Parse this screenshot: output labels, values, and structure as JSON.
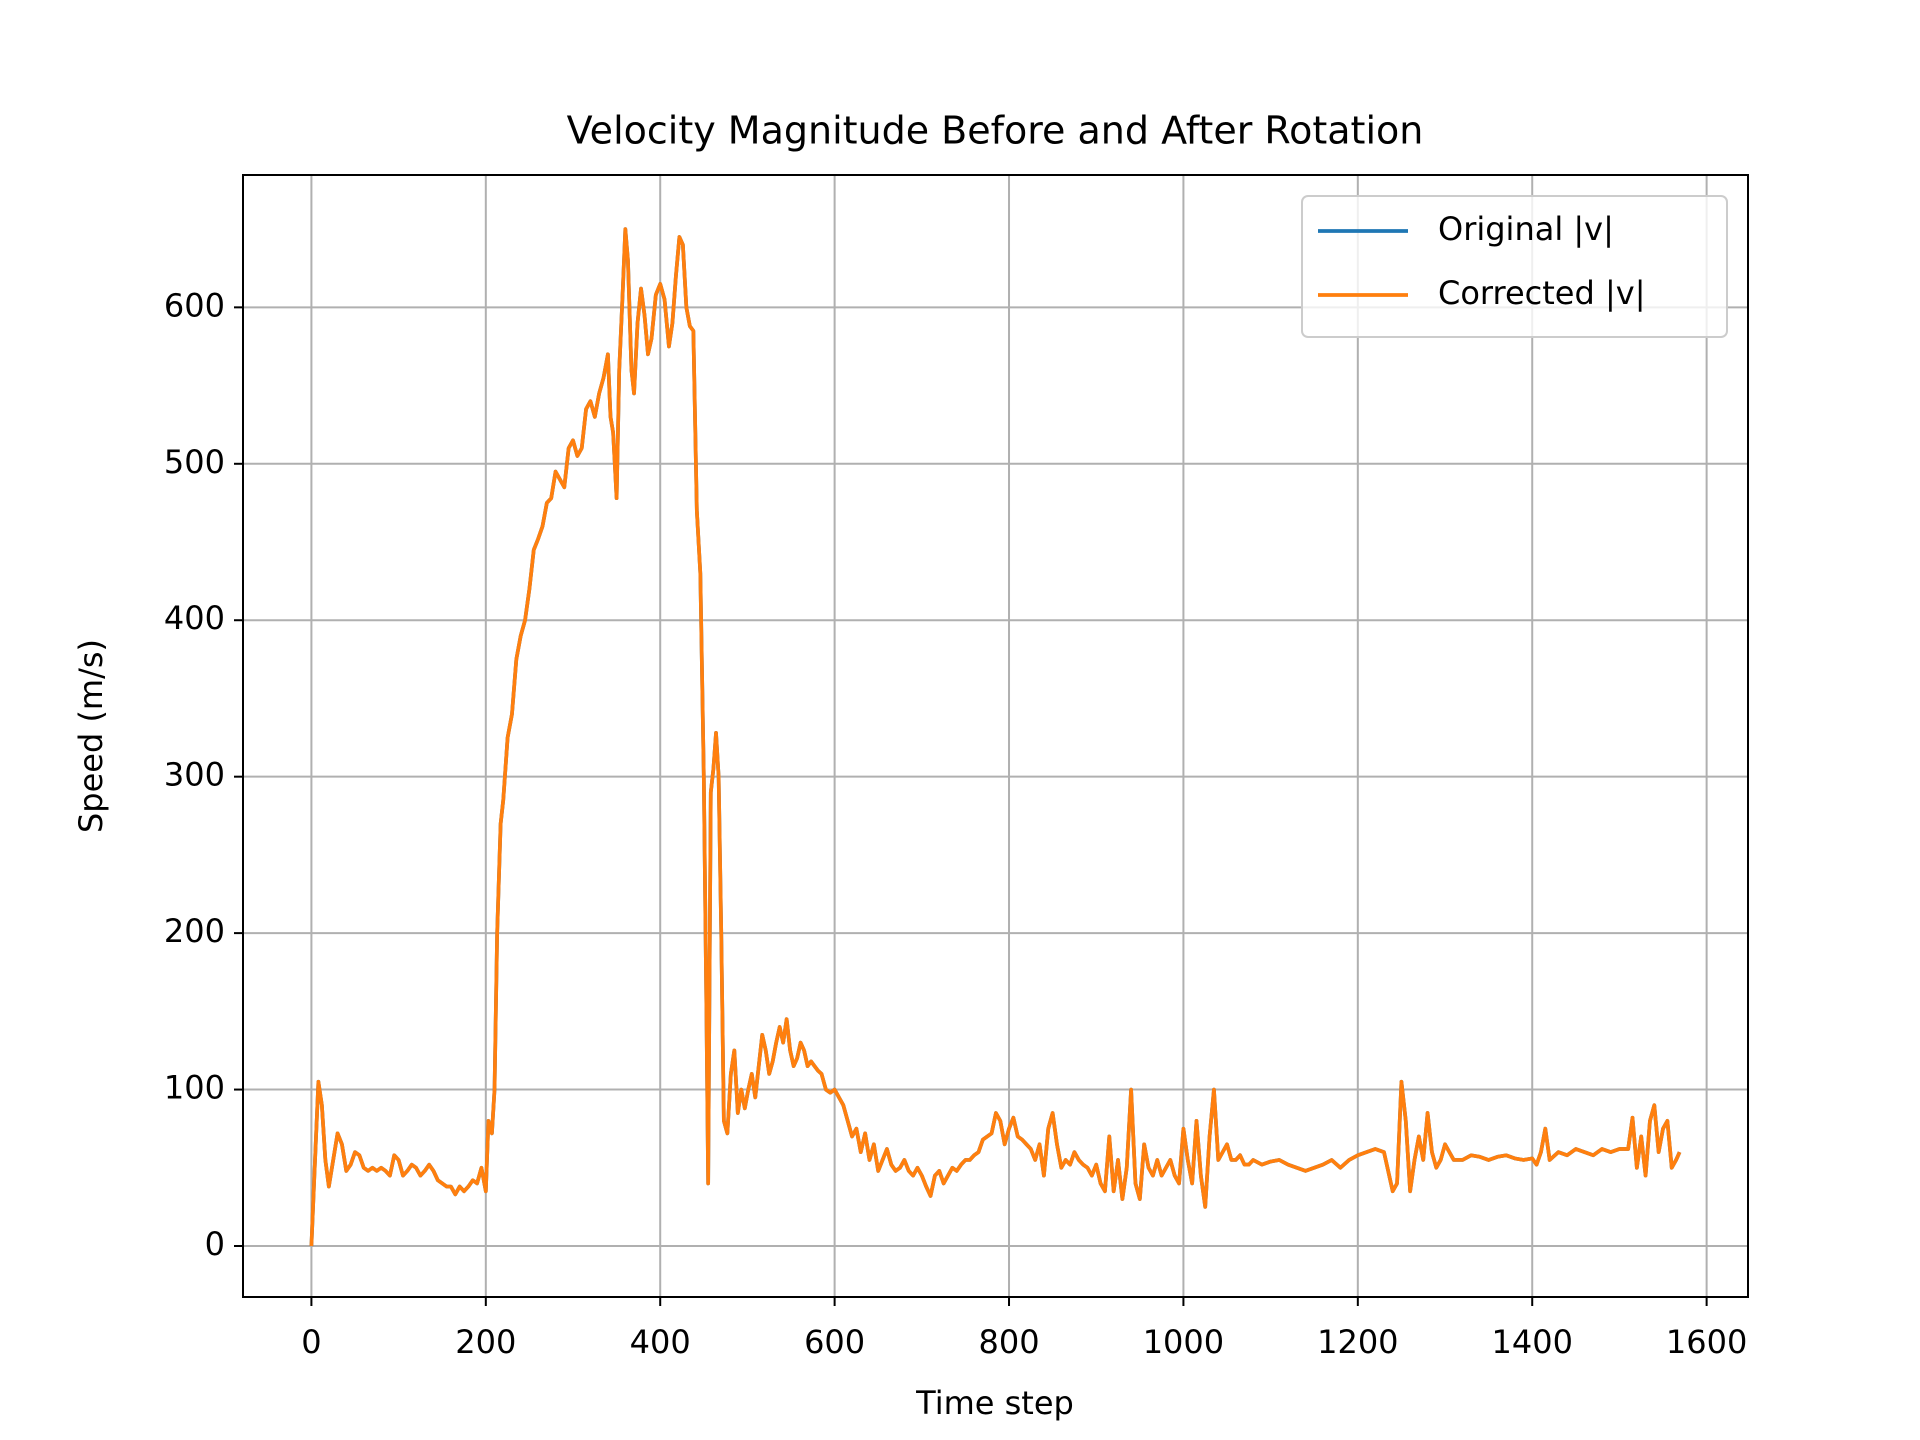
{
  "chart_data": {
    "type": "line",
    "title": "Velocity Magnitude Before and After Rotation",
    "x_label": "Time step",
    "y_label": "Speed (m/s)",
    "x": [
      0,
      3,
      8,
      12,
      16,
      20,
      25,
      30,
      35,
      40,
      45,
      50,
      55,
      60,
      65,
      70,
      75,
      80,
      85,
      90,
      95,
      100,
      105,
      110,
      115,
      120,
      125,
      130,
      135,
      140,
      145,
      150,
      155,
      160,
      165,
      170,
      175,
      180,
      185,
      190,
      195,
      200,
      203,
      207,
      210,
      213,
      217,
      220,
      225,
      230,
      235,
      240,
      245,
      250,
      255,
      260,
      265,
      270,
      275,
      280,
      285,
      290,
      295,
      300,
      305,
      310,
      315,
      320,
      325,
      330,
      335,
      340,
      343,
      346,
      350,
      353,
      357,
      360,
      363,
      367,
      370,
      374,
      378,
      382,
      386,
      390,
      395,
      400,
      405,
      410,
      414,
      418,
      422,
      426,
      430,
      434,
      438,
      442,
      446,
      450,
      453,
      455,
      458,
      461,
      464,
      467,
      470,
      473,
      477,
      481,
      485,
      489,
      493,
      497,
      501,
      505,
      509,
      513,
      517,
      521,
      525,
      529,
      533,
      537,
      541,
      545,
      549,
      553,
      557,
      561,
      565,
      569,
      573,
      577,
      581,
      585,
      590,
      595,
      600,
      605,
      610,
      615,
      620,
      625,
      630,
      635,
      640,
      645,
      650,
      655,
      660,
      665,
      670,
      675,
      680,
      685,
      690,
      695,
      700,
      705,
      710,
      715,
      720,
      725,
      730,
      735,
      740,
      745,
      750,
      755,
      760,
      765,
      770,
      775,
      780,
      785,
      790,
      795,
      800,
      805,
      810,
      815,
      820,
      825,
      830,
      835,
      840,
      845,
      850,
      855,
      860,
      865,
      870,
      875,
      880,
      885,
      890,
      895,
      900,
      905,
      910,
      915,
      920,
      925,
      930,
      935,
      940,
      945,
      950,
      955,
      960,
      965,
      970,
      975,
      980,
      985,
      990,
      995,
      1000,
      1005,
      1010,
      1015,
      1020,
      1025,
      1030,
      1035,
      1040,
      1045,
      1050,
      1055,
      1060,
      1065,
      1070,
      1075,
      1080,
      1090,
      1100,
      1110,
      1120,
      1130,
      1140,
      1150,
      1160,
      1170,
      1180,
      1190,
      1200,
      1210,
      1220,
      1230,
      1240,
      1245,
      1250,
      1255,
      1260,
      1265,
      1270,
      1275,
      1280,
      1285,
      1290,
      1295,
      1300,
      1305,
      1310,
      1320,
      1330,
      1340,
      1350,
      1360,
      1370,
      1380,
      1390,
      1400,
      1405,
      1410,
      1415,
      1420,
      1430,
      1440,
      1450,
      1460,
      1470,
      1480,
      1490,
      1500,
      1510,
      1515,
      1520,
      1525,
      1530,
      1535,
      1540,
      1545,
      1550,
      1555,
      1560,
      1565,
      1569
    ],
    "series": [
      {
        "name": "Original |v|",
        "color": "#1f77b4",
        "values": [
          0,
          40,
          105,
          90,
          55,
          38,
          55,
          72,
          65,
          48,
          52,
          60,
          58,
          50,
          48,
          50,
          48,
          50,
          48,
          45,
          58,
          55,
          45,
          48,
          52,
          50,
          45,
          48,
          52,
          48,
          42,
          40,
          38,
          38,
          33,
          38,
          35,
          38,
          42,
          40,
          50,
          35,
          80,
          72,
          100,
          200,
          270,
          285,
          325,
          340,
          375,
          390,
          400,
          420,
          445,
          452,
          460,
          475,
          478,
          495,
          490,
          485,
          510,
          515,
          505,
          510,
          535,
          540,
          530,
          545,
          555,
          570,
          530,
          520,
          478,
          560,
          610,
          650,
          630,
          560,
          545,
          590,
          612,
          595,
          570,
          580,
          608,
          615,
          605,
          575,
          590,
          620,
          645,
          640,
          600,
          588,
          585,
          470,
          430,
          300,
          150,
          40,
          290,
          305,
          328,
          300,
          200,
          80,
          72,
          110,
          125,
          85,
          100,
          88,
          100,
          110,
          95,
          115,
          135,
          125,
          110,
          118,
          130,
          140,
          130,
          145,
          125,
          115,
          120,
          130,
          125,
          115,
          118,
          115,
          112,
          110,
          100,
          98,
          100,
          95,
          90,
          80,
          70,
          75,
          60,
          72,
          55,
          65,
          48,
          55,
          62,
          52,
          48,
          50,
          55,
          48,
          45,
          50,
          45,
          38,
          32,
          45,
          48,
          40,
          45,
          50,
          48,
          52,
          55,
          55,
          58,
          60,
          68,
          70,
          72,
          85,
          80,
          65,
          75,
          82,
          70,
          68,
          65,
          62,
          55,
          65,
          45,
          75,
          85,
          65,
          50,
          55,
          52,
          60,
          55,
          52,
          50,
          45,
          52,
          40,
          35,
          70,
          35,
          55,
          30,
          50,
          100,
          40,
          30,
          65,
          50,
          45,
          55,
          45,
          50,
          55,
          45,
          40,
          75,
          55,
          40,
          80,
          45,
          25,
          70,
          100,
          55,
          60,
          65,
          55,
          55,
          58,
          52,
          52,
          55,
          52,
          54,
          55,
          52,
          50,
          48,
          50,
          52,
          55,
          50,
          55,
          58,
          60,
          62,
          60,
          35,
          40,
          105,
          80,
          35,
          55,
          70,
          55,
          85,
          60,
          50,
          55,
          65,
          60,
          55,
          55,
          58,
          57,
          55,
          57,
          58,
          56,
          55,
          56,
          52,
          60,
          75,
          55,
          60,
          58,
          62,
          60,
          58,
          62,
          60,
          62,
          62,
          82,
          50,
          70,
          45,
          80,
          90,
          60,
          75,
          80,
          50,
          55,
          60
        ]
      },
      {
        "name": "Corrected |v|",
        "color": "#ff7f0e",
        "values": [
          0,
          40,
          105,
          90,
          55,
          38,
          55,
          72,
          65,
          48,
          52,
          60,
          58,
          50,
          48,
          50,
          48,
          50,
          48,
          45,
          58,
          55,
          45,
          48,
          52,
          50,
          45,
          48,
          52,
          48,
          42,
          40,
          38,
          38,
          33,
          38,
          35,
          38,
          42,
          40,
          50,
          35,
          80,
          72,
          100,
          200,
          270,
          285,
          325,
          340,
          375,
          390,
          400,
          420,
          445,
          452,
          460,
          475,
          478,
          495,
          490,
          485,
          510,
          515,
          505,
          510,
          535,
          540,
          530,
          545,
          555,
          570,
          530,
          520,
          478,
          560,
          610,
          650,
          630,
          560,
          545,
          590,
          612,
          595,
          570,
          580,
          608,
          615,
          605,
          575,
          590,
          620,
          645,
          640,
          600,
          588,
          585,
          470,
          430,
          300,
          150,
          40,
          290,
          305,
          328,
          300,
          200,
          80,
          72,
          110,
          125,
          85,
          100,
          88,
          100,
          110,
          95,
          115,
          135,
          125,
          110,
          118,
          130,
          140,
          130,
          145,
          125,
          115,
          120,
          130,
          125,
          115,
          118,
          115,
          112,
          110,
          100,
          98,
          100,
          95,
          90,
          80,
          70,
          75,
          60,
          72,
          55,
          65,
          48,
          55,
          62,
          52,
          48,
          50,
          55,
          48,
          45,
          50,
          45,
          38,
          32,
          45,
          48,
          40,
          45,
          50,
          48,
          52,
          55,
          55,
          58,
          60,
          68,
          70,
          72,
          85,
          80,
          65,
          75,
          82,
          70,
          68,
          65,
          62,
          55,
          65,
          45,
          75,
          85,
          65,
          50,
          55,
          52,
          60,
          55,
          52,
          50,
          45,
          52,
          40,
          35,
          70,
          35,
          55,
          30,
          50,
          100,
          40,
          30,
          65,
          50,
          45,
          55,
          45,
          50,
          55,
          45,
          40,
          75,
          55,
          40,
          80,
          45,
          25,
          70,
          100,
          55,
          60,
          65,
          55,
          55,
          58,
          52,
          52,
          55,
          52,
          54,
          55,
          52,
          50,
          48,
          50,
          52,
          55,
          50,
          55,
          58,
          60,
          62,
          60,
          35,
          40,
          105,
          80,
          35,
          55,
          70,
          55,
          85,
          60,
          50,
          55,
          65,
          60,
          55,
          55,
          58,
          57,
          55,
          57,
          58,
          56,
          55,
          56,
          52,
          60,
          75,
          55,
          60,
          58,
          62,
          60,
          58,
          62,
          60,
          62,
          62,
          82,
          50,
          70,
          45,
          80,
          90,
          60,
          75,
          80,
          50,
          55,
          60
        ]
      }
    ],
    "xlim": [
      -78.45,
      1647.45
    ],
    "xticks": [
      0,
      200,
      400,
      600,
      800,
      1000,
      1200,
      1400,
      1600
    ],
    "ylim": [
      -32.6,
      684.6
    ],
    "yticks": [
      0,
      100,
      200,
      300,
      400,
      500,
      600
    ],
    "grid": true,
    "legend": "upper right"
  }
}
